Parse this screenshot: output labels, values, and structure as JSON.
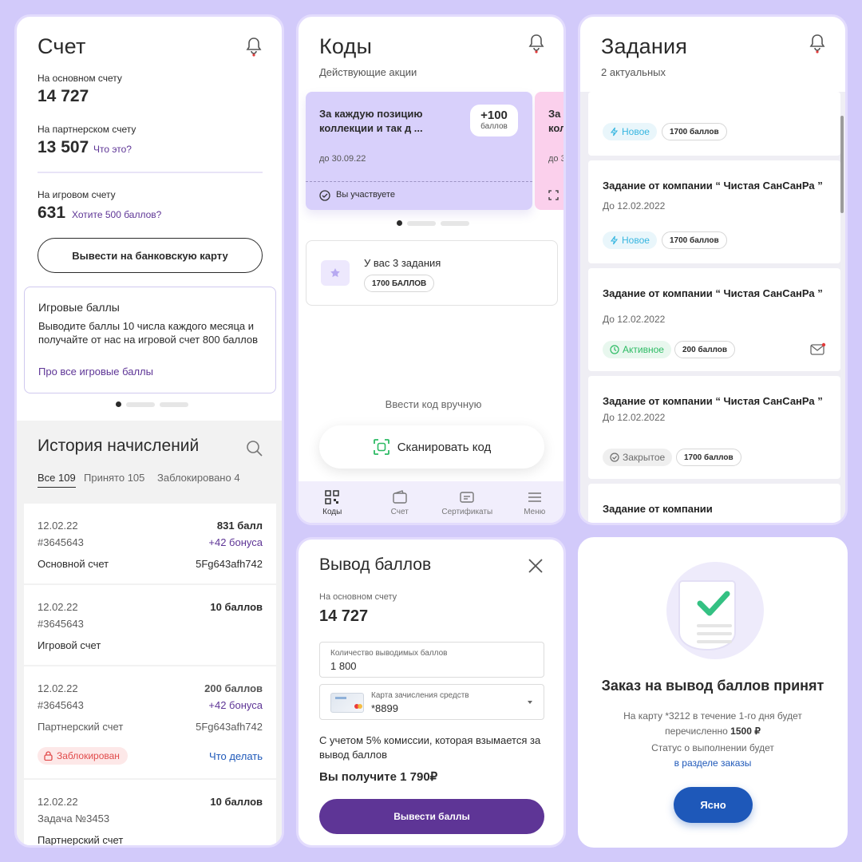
{
  "account": {
    "title": "Счет",
    "main_label": "На основном счету",
    "main_value": "14 727",
    "partner_label": "На партнерском счету",
    "partner_value": "13 507",
    "partner_link": "Что это?",
    "game_label": "На игровом счету",
    "game_value": "631",
    "game_link": "Хотите 500 баллов?",
    "withdraw_button": "Вывести на банковскую карту",
    "info_title": "Игровые баллы",
    "info_text": "Выводите баллы 10 числа каждого месяца и получайте от нас на игровой счет 800 баллов",
    "info_link": "Про все игровые баллы",
    "history_title": "История начислений",
    "tabs": [
      "Все 109",
      "Принято 105",
      "Заблокировано 4"
    ],
    "rows": [
      {
        "date": "12.02.22",
        "amount": "831 балл",
        "id": "#3645643",
        "bonus": "+42 бонуса",
        "account": "Основной счет",
        "code": "5Fg643afh742"
      },
      {
        "date": "12.02.22",
        "amount": "10 баллов",
        "id": "#3645643",
        "bonus": "",
        "account": "Игровой счет",
        "code": ""
      },
      {
        "date": "12.02.22",
        "amount": "200 баллов",
        "id": "#3645643",
        "bonus": "+42 бонуса",
        "account": "Партнерский счет",
        "code": "5Fg643afh742",
        "status": "Заблокирован",
        "action": "Что делать"
      },
      {
        "date": "12.02.22",
        "amount": "10 баллов",
        "id": "Задача №3453",
        "bonus": "",
        "account": "Партнерский счет",
        "code": ""
      }
    ]
  },
  "codes": {
    "title": "Коды",
    "subtitle": "Действующие акции",
    "promo_text": "За каждую позицию коллекции и так д ...",
    "promo_points": "+100",
    "promo_points_unit": "баллов",
    "promo_date": "до 30.09.22",
    "promo_status": "Вы участвуете",
    "promo2_text": "За кол",
    "promo2_date": "до 3",
    "tasks_title": "У вас 3 задания",
    "tasks_chip": "1700 БАЛЛОВ",
    "manual": "Ввести код вручную",
    "scan_button": "Сканировать код",
    "nav": [
      "Коды",
      "Счет",
      "Сертификаты",
      "Меню"
    ]
  },
  "tasks": {
    "title": "Задания",
    "subtitle": "2 актуальных",
    "items": [
      {
        "title": "",
        "date": "",
        "status": "Новое",
        "points": "1700 баллов"
      },
      {
        "title": "Задание от компании “ Чистая СанСанРа ”",
        "date": "До 12.02.2022",
        "status": "Новое",
        "points": "1700 баллов"
      },
      {
        "title": "Задание от компании “ Чистая СанСанРа ”",
        "date": "До 12.02.2022",
        "status": "Активное",
        "points": "200 баллов"
      },
      {
        "title": "Задание от компании “ Чистая СанСанРа ”",
        "date": "До 12.02.2022",
        "status": "Закрытое",
        "points": "1700 баллов"
      },
      {
        "title": "Задание от компании",
        "date": "",
        "status": "",
        "points": ""
      }
    ]
  },
  "withdraw": {
    "title": "Вывод баллов",
    "main_label": "На основном счету",
    "main_value": "14 727",
    "amount_label": "Количество выводимых баллов",
    "amount_value": "1 800",
    "card_label": "Карта зачисления средств",
    "card_value": "*8899",
    "commission_text": "С учетом 5% комиссии, которая взымается за вывод баллов",
    "receive_text": "Вы получите 1 790₽",
    "submit_button": "Вывести баллы"
  },
  "success": {
    "title": "Заказ на вывод баллов принят",
    "line1": "На карту *3212 в течение 1-го дня будет",
    "line2_pre": "перечисленно ",
    "line2_amount": "1500 ₽",
    "line3": "Статус о выполнении будет",
    "link": "в разделе заказы",
    "ok_button": "Ясно"
  },
  "colors": {
    "accent": "#5e3596",
    "lilac": "#d2cafa",
    "promo": "#d8d0fb",
    "blue_button": "#1e58b9",
    "link": "#5e3596"
  }
}
